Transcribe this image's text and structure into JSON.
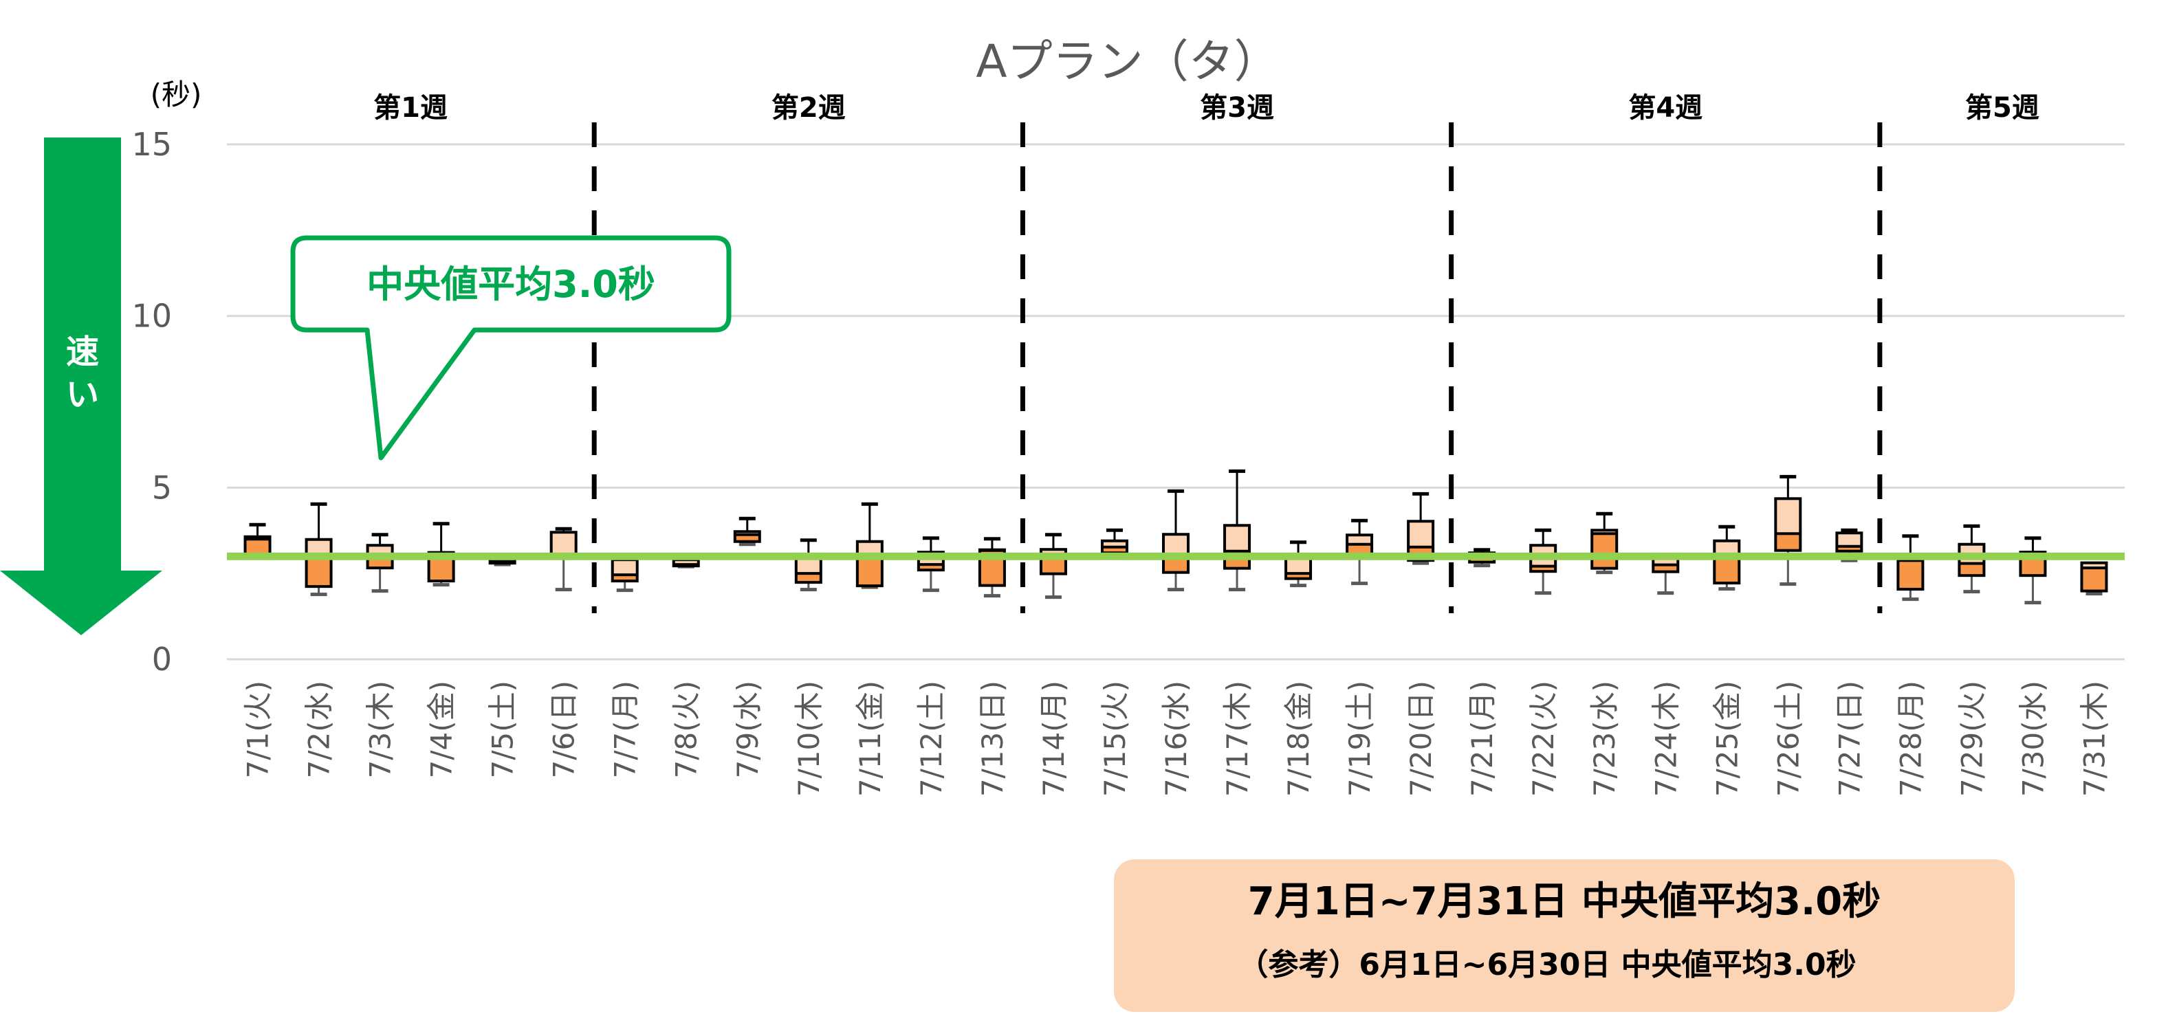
{
  "chart_data": {
    "type": "box",
    "title": "Aプラン（タ）",
    "ylabel": "(秒)",
    "ylim": [
      0,
      15
    ],
    "yticks": [
      "0",
      "5",
      "10",
      "15"
    ],
    "grid": true,
    "reference_line": {
      "value": 3.0,
      "color": "#92d050"
    },
    "weeks": [
      "第1週",
      "第2週",
      "第3週",
      "第4週",
      "第5週"
    ],
    "week_breaks_after_index": [
      5,
      12,
      19,
      26
    ],
    "categories": [
      "7/1(火)",
      "7/2(水)",
      "7/3(木)",
      "7/4(金)",
      "7/5(土)",
      "7/6(日)",
      "7/7(月)",
      "7/8(火)",
      "7/9(水)",
      "7/10(木)",
      "7/11(金)",
      "7/12(土)",
      "7/13(日)",
      "7/14(月)",
      "7/15(火)",
      "7/16(水)",
      "7/17(木)",
      "7/18(金)",
      "7/19(土)",
      "7/20(日)",
      "7/21(月)",
      "7/22(火)",
      "7/23(水)",
      "7/24(木)",
      "7/25(金)",
      "7/26(土)",
      "7/27(日)",
      "7/28(月)",
      "7/29(火)",
      "7/30(水)",
      "7/31(木)"
    ],
    "box_fields": [
      "min",
      "q1",
      "median",
      "q3",
      "max"
    ],
    "boxes": [
      [
        3.0,
        3.0,
        3.5,
        3.57,
        3.92
      ],
      [
        1.89,
        2.12,
        3.0,
        3.49,
        4.52
      ],
      [
        1.99,
        2.66,
        3.0,
        3.32,
        3.63
      ],
      [
        2.17,
        2.28,
        3.11,
        3.11,
        3.95
      ],
      [
        2.76,
        2.8,
        2.85,
        2.95,
        2.95
      ],
      [
        2.03,
        3.0,
        3.0,
        3.7,
        3.8
      ],
      [
        2.01,
        2.28,
        2.46,
        2.9,
        2.9
      ],
      [
        2.7,
        2.72,
        2.76,
        2.9,
        2.9
      ],
      [
        3.35,
        3.43,
        3.63,
        3.72,
        4.1
      ],
      [
        2.03,
        2.24,
        2.5,
        3.0,
        3.47
      ],
      [
        2.1,
        2.14,
        3.0,
        3.43,
        4.52
      ],
      [
        2.01,
        2.6,
        2.76,
        3.12,
        3.53
      ],
      [
        1.85,
        2.15,
        3.17,
        3.19,
        3.51
      ],
      [
        1.81,
        2.49,
        3.0,
        3.2,
        3.63
      ],
      [
        3.1,
        3.1,
        3.27,
        3.45,
        3.76
      ],
      [
        2.03,
        2.53,
        3.0,
        3.64,
        4.9
      ],
      [
        2.03,
        2.65,
        3.15,
        3.9,
        5.48
      ],
      [
        2.15,
        2.35,
        2.5,
        3.0,
        3.41
      ],
      [
        2.21,
        3.0,
        3.35,
        3.62,
        4.04
      ],
      [
        2.8,
        2.88,
        3.27,
        4.02,
        4.82
      ],
      [
        2.73,
        2.83,
        2.95,
        3.1,
        3.19
      ],
      [
        1.93,
        2.56,
        2.71,
        3.32,
        3.76
      ],
      [
        2.53,
        2.65,
        3.66,
        3.76,
        4.24
      ],
      [
        1.93,
        2.55,
        2.75,
        3.0,
        3.0
      ],
      [
        2.05,
        2.22,
        3.0,
        3.45,
        3.86
      ],
      [
        2.19,
        3.17,
        3.66,
        4.68,
        5.32
      ],
      [
        2.88,
        3.15,
        3.29,
        3.68,
        3.76
      ],
      [
        1.75,
        2.04,
        2.88,
        2.88,
        3.59
      ],
      [
        1.97,
        2.44,
        2.79,
        3.35,
        3.88
      ],
      [
        1.65,
        2.44,
        3.12,
        3.12,
        3.53
      ],
      [
        1.91,
        1.99,
        2.66,
        2.81,
        2.81
      ]
    ],
    "colors": {
      "upper_box": "#fbd5b5",
      "lower_box": "#f79646",
      "accent_green": "#00a94f",
      "grid": "#d9d9d9"
    }
  },
  "arrow_label": "速い",
  "callout": "中央値平均3.0秒",
  "summary": {
    "line1": "7月1日~7月31日  中央値平均3.0秒",
    "line2": "（参考）6月1日~6月30日  中央値平均3.0秒"
  }
}
